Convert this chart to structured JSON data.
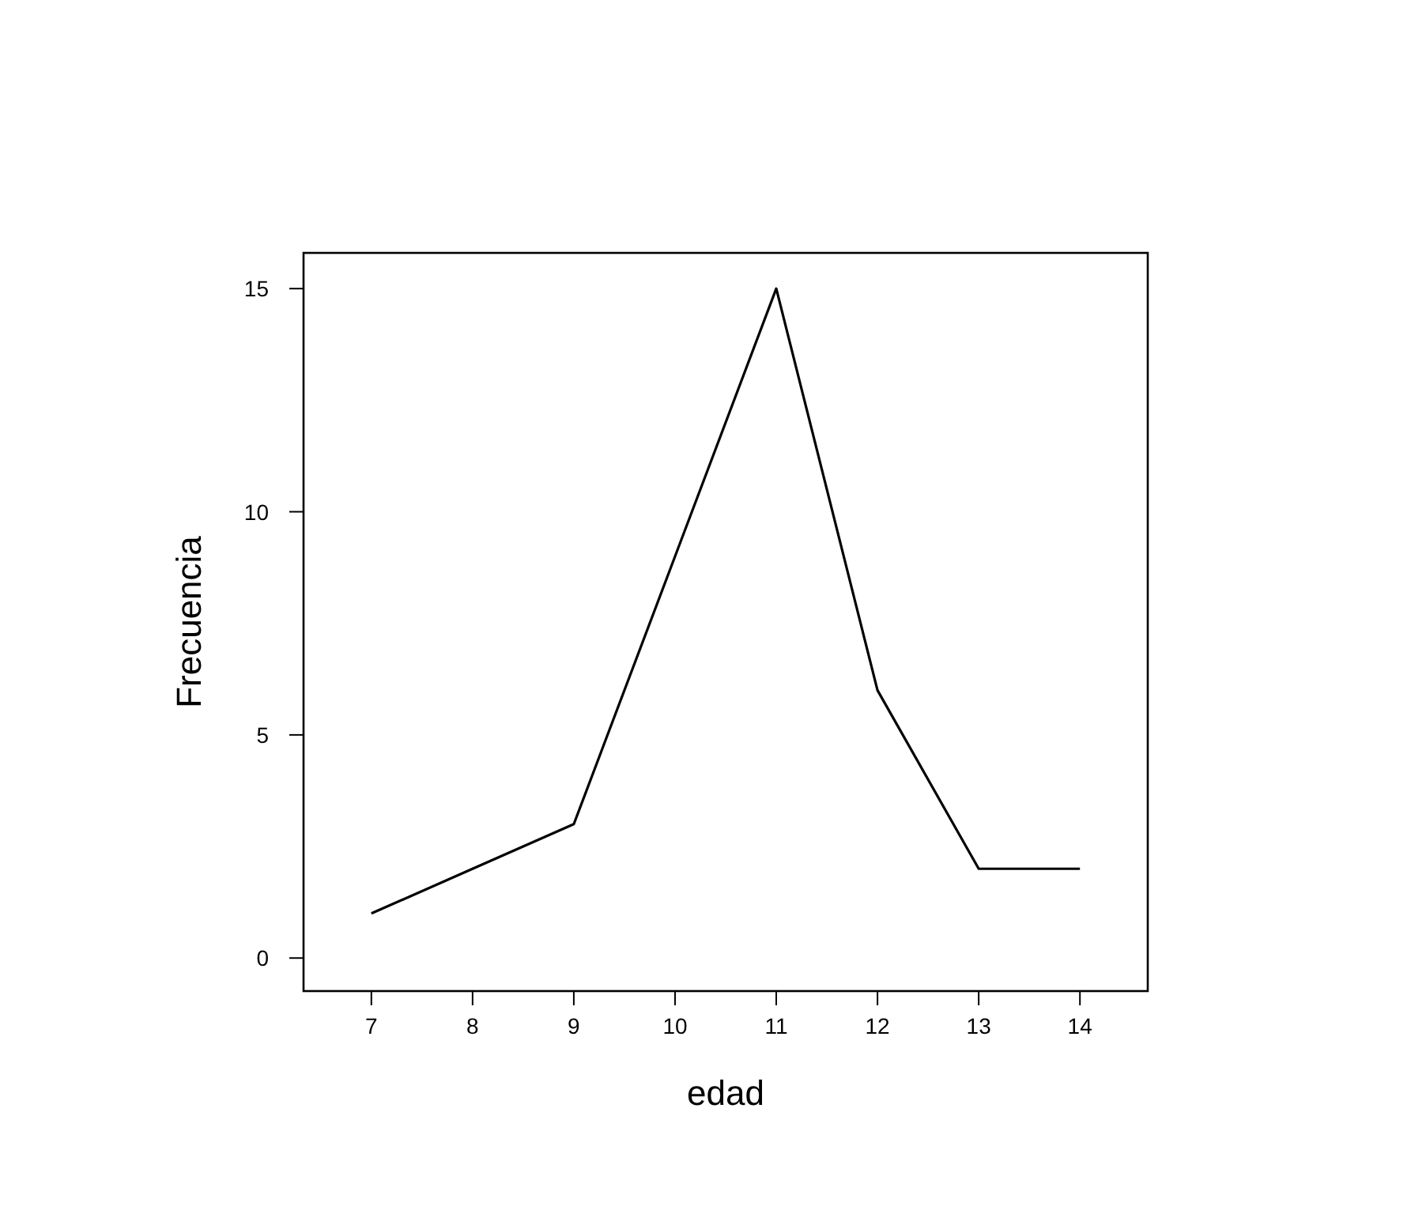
{
  "chart_data": {
    "type": "line",
    "xlabel": "edad",
    "ylabel": "Frecuencia",
    "x": [
      7,
      8,
      9,
      10,
      11,
      12,
      13,
      14
    ],
    "series": [
      {
        "color": "#000000",
        "values": [
          1,
          2,
          3,
          9,
          15,
          6,
          2,
          2
        ]
      }
    ],
    "xlim": [
      6.33,
      14.67
    ],
    "xticks": [
      7,
      8,
      9,
      10,
      11,
      12,
      13,
      14
    ],
    "ylim": [
      -0.74,
      15.8
    ],
    "yticks": [
      0,
      5,
      10,
      15
    ],
    "grid": false,
    "marker": "none",
    "line_style": "solid"
  }
}
